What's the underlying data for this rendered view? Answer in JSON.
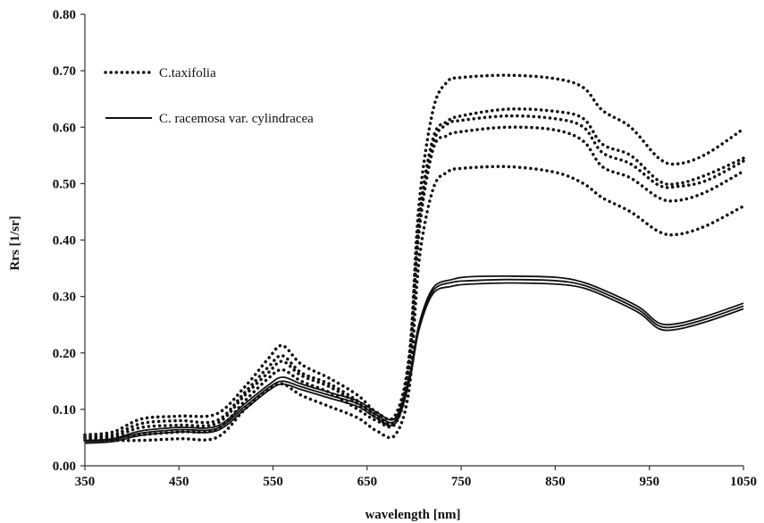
{
  "chart_data": {
    "type": "line",
    "title": "",
    "xlabel": "wavelength [nm]",
    "ylabel": "Rrs [1/sr]",
    "xlim": [
      350,
      1050
    ],
    "ylim": [
      0.0,
      0.8
    ],
    "x_ticks": [
      "350",
      "450",
      "550",
      "650",
      "750",
      "850",
      "950",
      "1050"
    ],
    "y_ticks": [
      "0.00",
      "0.10",
      "0.20",
      "0.30",
      "0.40",
      "0.50",
      "0.60",
      "0.70",
      "0.80"
    ],
    "grid": false,
    "legend": {
      "placement": "top-left",
      "entries": [
        {
          "label": "C.taxifolia",
          "style": "dotted"
        },
        {
          "label": "C. racemosa var. cylindracea",
          "style": "solid"
        }
      ]
    },
    "series": [
      {
        "group": "C.taxifolia",
        "style": "dotted",
        "x": [
          350,
          380,
          410,
          450,
          490,
          520,
          545,
          560,
          580,
          610,
          640,
          660,
          680,
          695,
          705,
          720,
          735,
          750,
          800,
          850,
          880,
          900,
          930,
          960,
          980,
          1010,
          1050
        ],
        "y": [
          0.055,
          0.06,
          0.083,
          0.088,
          0.092,
          0.14,
          0.19,
          0.213,
          0.18,
          0.155,
          0.125,
          0.095,
          0.09,
          0.2,
          0.46,
          0.63,
          0.68,
          0.688,
          0.692,
          0.686,
          0.67,
          0.63,
          0.6,
          0.545,
          0.535,
          0.552,
          0.597
        ]
      },
      {
        "group": "C.taxifolia",
        "style": "dotted",
        "x": [
          350,
          380,
          410,
          450,
          490,
          520,
          545,
          560,
          580,
          610,
          640,
          660,
          680,
          695,
          705,
          720,
          735,
          750,
          800,
          850,
          880,
          900,
          930,
          960,
          980,
          1010,
          1050
        ],
        "y": [
          0.052,
          0.055,
          0.075,
          0.08,
          0.08,
          0.13,
          0.175,
          0.195,
          0.165,
          0.145,
          0.115,
          0.09,
          0.08,
          0.19,
          0.43,
          0.58,
          0.61,
          0.62,
          0.632,
          0.628,
          0.615,
          0.57,
          0.55,
          0.505,
          0.5,
          0.515,
          0.545
        ]
      },
      {
        "group": "C.taxifolia",
        "style": "dotted",
        "x": [
          350,
          380,
          410,
          450,
          490,
          520,
          545,
          560,
          580,
          610,
          640,
          660,
          680,
          695,
          705,
          720,
          735,
          750,
          800,
          850,
          880,
          900,
          930,
          960,
          980,
          1010,
          1050
        ],
        "y": [
          0.05,
          0.052,
          0.068,
          0.072,
          0.075,
          0.125,
          0.165,
          0.185,
          0.16,
          0.14,
          0.11,
          0.085,
          0.078,
          0.18,
          0.42,
          0.57,
          0.605,
          0.612,
          0.62,
          0.615,
          0.6,
          0.555,
          0.535,
          0.497,
          0.495,
          0.505,
          0.54
        ]
      },
      {
        "group": "C.taxifolia",
        "style": "dotted",
        "x": [
          350,
          380,
          410,
          450,
          490,
          520,
          545,
          560,
          580,
          610,
          640,
          660,
          680,
          695,
          705,
          720,
          735,
          750,
          800,
          850,
          880,
          900,
          930,
          960,
          980,
          1010,
          1050
        ],
        "y": [
          0.048,
          0.05,
          0.055,
          0.06,
          0.065,
          0.115,
          0.155,
          0.17,
          0.15,
          0.13,
          0.1,
          0.08,
          0.075,
          0.17,
          0.41,
          0.56,
          0.585,
          0.592,
          0.6,
          0.595,
          0.575,
          0.53,
          0.51,
          0.475,
          0.47,
          0.485,
          0.522
        ]
      },
      {
        "group": "C.taxifolia",
        "style": "dotted",
        "x": [
          350,
          380,
          410,
          450,
          490,
          520,
          545,
          560,
          580,
          610,
          640,
          660,
          680,
          695,
          705,
          720,
          735,
          750,
          800,
          850,
          880,
          900,
          930,
          960,
          980,
          1010,
          1050
        ],
        "y": [
          0.045,
          0.045,
          0.045,
          0.048,
          0.05,
          0.1,
          0.135,
          0.145,
          0.125,
          0.105,
          0.085,
          0.062,
          0.055,
          0.14,
          0.36,
          0.49,
          0.52,
          0.527,
          0.53,
          0.52,
          0.5,
          0.475,
          0.45,
          0.415,
          0.41,
          0.425,
          0.46
        ]
      },
      {
        "group": "C. racemosa var. cylindracea",
        "style": "solid",
        "x": [
          350,
          380,
          410,
          450,
          490,
          520,
          545,
          560,
          580,
          610,
          640,
          660,
          680,
          695,
          705,
          720,
          740,
          760,
          800,
          850,
          880,
          910,
          940,
          960,
          980,
          1010,
          1050
        ],
        "y": [
          0.045,
          0.048,
          0.062,
          0.068,
          0.07,
          0.11,
          0.143,
          0.157,
          0.145,
          0.13,
          0.115,
          0.095,
          0.085,
          0.16,
          0.25,
          0.315,
          0.33,
          0.335,
          0.336,
          0.334,
          0.325,
          0.305,
          0.28,
          0.253,
          0.252,
          0.265,
          0.288
        ]
      },
      {
        "group": "C. racemosa var. cylindracea",
        "style": "solid",
        "x": [
          350,
          380,
          410,
          450,
          490,
          520,
          545,
          560,
          580,
          610,
          640,
          660,
          680,
          695,
          705,
          720,
          740,
          760,
          800,
          850,
          880,
          910,
          940,
          960,
          980,
          1010,
          1050
        ],
        "y": [
          0.043,
          0.046,
          0.058,
          0.064,
          0.066,
          0.105,
          0.138,
          0.15,
          0.14,
          0.125,
          0.11,
          0.09,
          0.08,
          0.155,
          0.245,
          0.31,
          0.325,
          0.328,
          0.33,
          0.328,
          0.32,
          0.3,
          0.275,
          0.248,
          0.247,
          0.26,
          0.283
        ]
      },
      {
        "group": "C. racemosa var. cylindracea",
        "style": "solid",
        "x": [
          350,
          380,
          410,
          450,
          490,
          520,
          545,
          560,
          580,
          610,
          640,
          660,
          680,
          695,
          705,
          720,
          740,
          760,
          800,
          850,
          880,
          910,
          940,
          960,
          980,
          1010,
          1050
        ],
        "y": [
          0.04,
          0.043,
          0.054,
          0.06,
          0.062,
          0.1,
          0.133,
          0.145,
          0.135,
          0.12,
          0.105,
          0.085,
          0.075,
          0.15,
          0.24,
          0.305,
          0.318,
          0.322,
          0.324,
          0.322,
          0.315,
          0.295,
          0.27,
          0.243,
          0.242,
          0.255,
          0.278
        ]
      }
    ]
  }
}
